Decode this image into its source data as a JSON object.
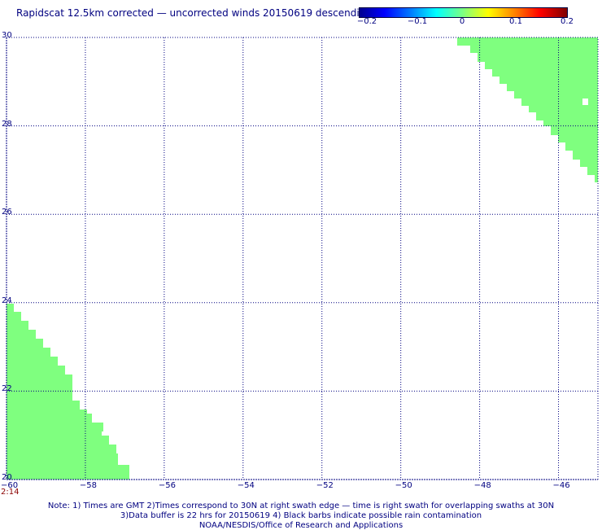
{
  "title": "Rapidscat 12.5km corrected — uncorrected winds 20150619 descending",
  "colorbar": {
    "ticks": [
      "−0.2",
      "−0.1",
      "0",
      "0.1",
      "0.2"
    ],
    "range": [
      -0.2,
      0.2
    ]
  },
  "map": {
    "lon_range": [
      -60,
      -45
    ],
    "lat_range": [
      20,
      30
    ],
    "x_ticks": [
      {
        "value": -60,
        "label": "−60"
      },
      {
        "value": -58,
        "label": "−58"
      },
      {
        "value": -56,
        "label": "−56"
      },
      {
        "value": -54,
        "label": "−54"
      },
      {
        "value": -52,
        "label": "−52"
      },
      {
        "value": -50,
        "label": "−50"
      },
      {
        "value": -48,
        "label": "−48"
      },
      {
        "value": -46,
        "label": "−46"
      }
    ],
    "y_ticks": [
      {
        "value": 30,
        "label": "30"
      },
      {
        "value": 28,
        "label": "28"
      },
      {
        "value": 26,
        "label": "26"
      },
      {
        "value": 24,
        "label": "24"
      },
      {
        "value": 22,
        "label": "22"
      },
      {
        "value": 20,
        "label": "20"
      }
    ],
    "swath_color": "#7fff7f",
    "grid_color": "#000080",
    "time_label": "2:14"
  },
  "notes": {
    "line1": "Note: 1) Times are GMT 2)Times correspond to 30N at right swath edge — time is right swath for overlapping swaths at 30N",
    "line2": "3)Data buffer is 22 hrs for 20150619 4) Black barbs indicate possible rain contamination",
    "line3": "NOAA/NESDIS/Office of Research and Applications"
  }
}
